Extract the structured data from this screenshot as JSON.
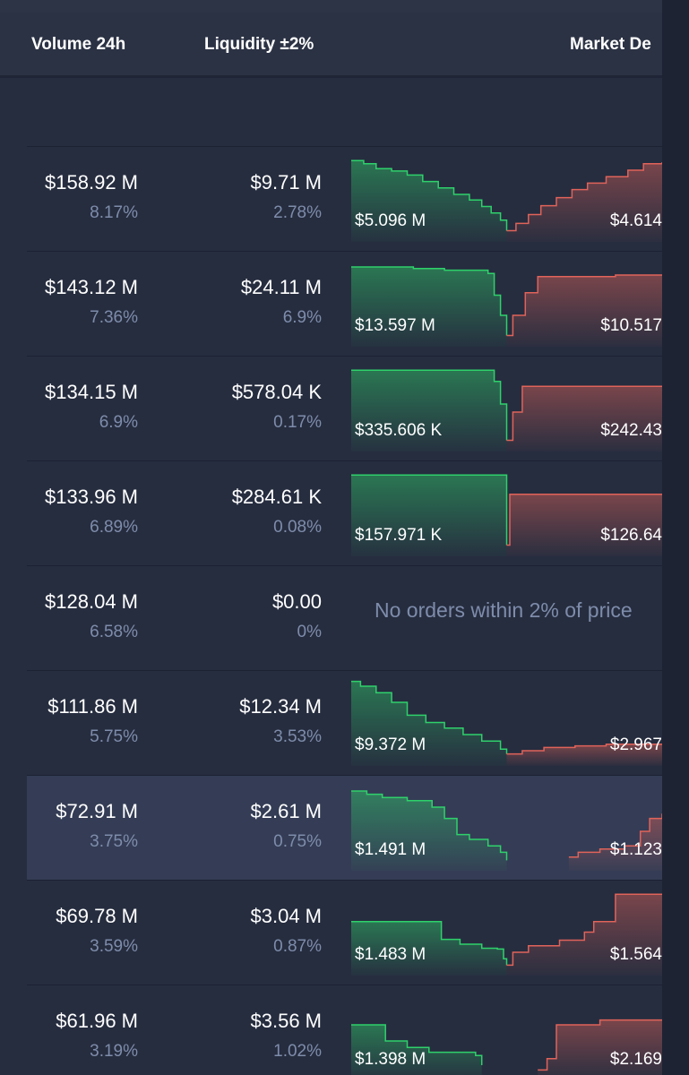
{
  "header": {
    "volume_label": "Volume 24h",
    "liquidity_label": "Liquidity ±2%",
    "market_depth_label": "Market De"
  },
  "colors": {
    "background": "#262d3f",
    "header_bg": "#2b3244",
    "highlight_row_bg": "#343d55",
    "bid_green": "#2fd16b",
    "ask_red": "#e0635a",
    "muted_text": "#7e8cab"
  },
  "rows": [
    {
      "volume": "$158.92 M",
      "volume_pct": "8.17%",
      "liquidity": "$9.71 M",
      "liquidity_pct": "2.78%",
      "depth": {
        "bid_label": "$5.096 M",
        "ask_label": "$4.614",
        "bid": [
          [
            0,
            0.92
          ],
          [
            0.04,
            0.88
          ],
          [
            0.08,
            0.82
          ],
          [
            0.13,
            0.79
          ],
          [
            0.18,
            0.74
          ],
          [
            0.23,
            0.66
          ],
          [
            0.28,
            0.58
          ],
          [
            0.33,
            0.5
          ],
          [
            0.38,
            0.43
          ],
          [
            0.42,
            0.35
          ],
          [
            0.45,
            0.27
          ],
          [
            0.48,
            0.18
          ],
          [
            0.5,
            0.05
          ]
        ],
        "ask": [
          [
            0.5,
            0.05
          ],
          [
            0.53,
            0.14
          ],
          [
            0.57,
            0.25
          ],
          [
            0.61,
            0.36
          ],
          [
            0.66,
            0.46
          ],
          [
            0.71,
            0.56
          ],
          [
            0.76,
            0.64
          ],
          [
            0.82,
            0.72
          ],
          [
            0.89,
            0.8
          ],
          [
            0.94,
            0.88
          ],
          [
            1,
            0.9
          ]
        ]
      }
    },
    {
      "volume": "$143.12 M",
      "volume_pct": "7.36%",
      "liquidity": "$24.11 M",
      "liquidity_pct": "6.9%",
      "depth": {
        "bid_label": "$13.597 M",
        "ask_label": "$10.517",
        "bid": [
          [
            0,
            0.9
          ],
          [
            0.08,
            0.9
          ],
          [
            0.2,
            0.88
          ],
          [
            0.3,
            0.86
          ],
          [
            0.38,
            0.86
          ],
          [
            0.44,
            0.82
          ],
          [
            0.46,
            0.55
          ],
          [
            0.48,
            0.3
          ],
          [
            0.5,
            0.05
          ]
        ],
        "ask": [
          [
            0.5,
            0.05
          ],
          [
            0.52,
            0.3
          ],
          [
            0.56,
            0.58
          ],
          [
            0.6,
            0.78
          ],
          [
            0.75,
            0.78
          ],
          [
            0.85,
            0.8
          ],
          [
            1,
            0.8
          ]
        ]
      }
    },
    {
      "volume": "$134.15 M",
      "volume_pct": "6.9%",
      "liquidity": "$578.04 K",
      "liquidity_pct": "0.17%",
      "depth": {
        "bid_label": "$335.606 K",
        "ask_label": "$242.43",
        "bid": [
          [
            0,
            0.92
          ],
          [
            0.2,
            0.92
          ],
          [
            0.44,
            0.92
          ],
          [
            0.46,
            0.78
          ],
          [
            0.48,
            0.5
          ],
          [
            0.5,
            0.05
          ]
        ],
        "ask": [
          [
            0.5,
            0.05
          ],
          [
            0.52,
            0.4
          ],
          [
            0.55,
            0.72
          ],
          [
            0.7,
            0.72
          ],
          [
            0.85,
            0.72
          ],
          [
            1,
            0.72
          ]
        ]
      }
    },
    {
      "volume": "$133.96 M",
      "volume_pct": "6.89%",
      "liquidity": "$284.61 K",
      "liquidity_pct": "0.08%",
      "depth": {
        "bid_label": "$157.971 K",
        "ask_label": "$126.64",
        "bid": [
          [
            0,
            0.92
          ],
          [
            0.3,
            0.92
          ],
          [
            0.47,
            0.92
          ],
          [
            0.5,
            0.05
          ]
        ],
        "ask": [
          [
            0.5,
            0.05
          ],
          [
            0.51,
            0.68
          ],
          [
            0.7,
            0.68
          ],
          [
            1,
            0.68
          ]
        ]
      }
    },
    {
      "volume": "$128.04 M",
      "volume_pct": "6.58%",
      "liquidity": "$0.00",
      "liquidity_pct": "0%",
      "no_orders": "No orders within 2% of price"
    },
    {
      "volume": "$111.86 M",
      "volume_pct": "5.75%",
      "liquidity": "$12.34 M",
      "liquidity_pct": "3.53%",
      "depth": {
        "bid_label": "$9.372 M",
        "ask_label": "$2.967",
        "bid": [
          [
            0,
            0.96
          ],
          [
            0.03,
            0.9
          ],
          [
            0.08,
            0.82
          ],
          [
            0.13,
            0.7
          ],
          [
            0.18,
            0.54
          ],
          [
            0.24,
            0.45
          ],
          [
            0.3,
            0.38
          ],
          [
            0.36,
            0.3
          ],
          [
            0.42,
            0.22
          ],
          [
            0.48,
            0.12
          ],
          [
            0.5,
            0.06
          ]
        ],
        "ask": [
          [
            0.5,
            0.06
          ],
          [
            0.55,
            0.1
          ],
          [
            0.62,
            0.14
          ],
          [
            0.72,
            0.16
          ],
          [
            0.82,
            0.18
          ],
          [
            1,
            0.18
          ]
        ]
      }
    },
    {
      "volume": "$72.91 M",
      "volume_pct": "3.75%",
      "liquidity": "$2.61 M",
      "liquidity_pct": "0.75%",
      "highlight": true,
      "depth": {
        "bid_label": "$1.491 M",
        "ask_label": "$1.123",
        "bid": [
          [
            0,
            0.9
          ],
          [
            0.05,
            0.86
          ],
          [
            0.1,
            0.82
          ],
          [
            0.18,
            0.78
          ],
          [
            0.26,
            0.7
          ],
          [
            0.3,
            0.56
          ],
          [
            0.34,
            0.36
          ],
          [
            0.38,
            0.3
          ],
          [
            0.44,
            0.22
          ],
          [
            0.48,
            0.14
          ],
          [
            0.5,
            0.04
          ]
        ],
        "ask": [
          [
            0.7,
            0.08
          ],
          [
            0.73,
            0.14
          ],
          [
            0.8,
            0.18
          ],
          [
            0.88,
            0.22
          ],
          [
            0.93,
            0.4
          ],
          [
            0.96,
            0.56
          ],
          [
            1,
            0.62
          ]
        ]
      }
    },
    {
      "volume": "$69.78 M",
      "volume_pct": "3.59%",
      "liquidity": "$3.04 M",
      "liquidity_pct": "0.87%",
      "depth": {
        "bid_label": "$1.483 M",
        "ask_label": "$1.564",
        "bid": [
          [
            0,
            0.58
          ],
          [
            0.14,
            0.58
          ],
          [
            0.28,
            0.58
          ],
          [
            0.29,
            0.36
          ],
          [
            0.35,
            0.3
          ],
          [
            0.42,
            0.25
          ],
          [
            0.47,
            0.24
          ],
          [
            0.49,
            0.12
          ],
          [
            0.5,
            0.04
          ]
        ],
        "ask": [
          [
            0.5,
            0.04
          ],
          [
            0.52,
            0.2
          ],
          [
            0.57,
            0.28
          ],
          [
            0.67,
            0.35
          ],
          [
            0.75,
            0.45
          ],
          [
            0.78,
            0.58
          ],
          [
            0.85,
            0.92
          ],
          [
            1,
            0.92
          ]
        ]
      }
    },
    {
      "volume": "$61.96 M",
      "volume_pct": "3.19%",
      "liquidity": "$3.56 M",
      "liquidity_pct": "1.02%",
      "depth": {
        "bid_label": "$1.398 M",
        "ask_label": "$2.169",
        "bid": [
          [
            0,
            0.6
          ],
          [
            0.08,
            0.6
          ],
          [
            0.11,
            0.4
          ],
          [
            0.18,
            0.32
          ],
          [
            0.25,
            0.26
          ],
          [
            0.4,
            0.22
          ],
          [
            0.42,
            0.1
          ]
        ],
        "ask": [
          [
            0.6,
            0.04
          ],
          [
            0.63,
            0.18
          ],
          [
            0.66,
            0.6
          ],
          [
            0.8,
            0.66
          ],
          [
            0.93,
            0.66
          ],
          [
            1,
            0.66
          ]
        ]
      }
    }
  ]
}
